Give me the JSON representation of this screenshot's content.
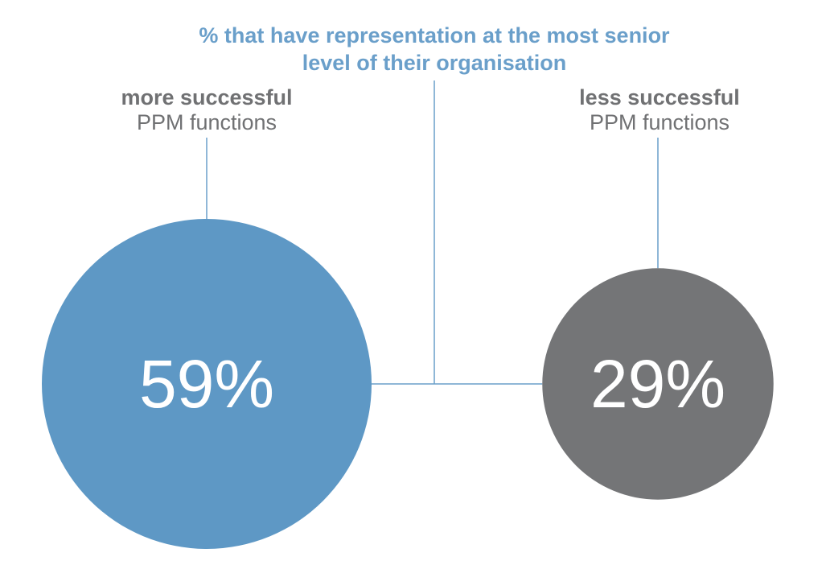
{
  "chart_data": {
    "type": "bubble",
    "title": "% that have representation at the most senior level of their organisation",
    "categories": [
      "more successful PPM functions",
      "less successful PPM functions"
    ],
    "series": [
      {
        "values": [
          59,
          29
        ]
      }
    ],
    "labels": [
      {
        "strong": "more successful",
        "light": "PPM functions",
        "value_label": "59%"
      },
      {
        "strong": "less successful",
        "light": "PPM functions",
        "value_label": "29%"
      }
    ],
    "colors": [
      "#5e98c5",
      "#747577"
    ],
    "connector_color": "#6a9fca",
    "value_text_color": "#ffffff"
  }
}
